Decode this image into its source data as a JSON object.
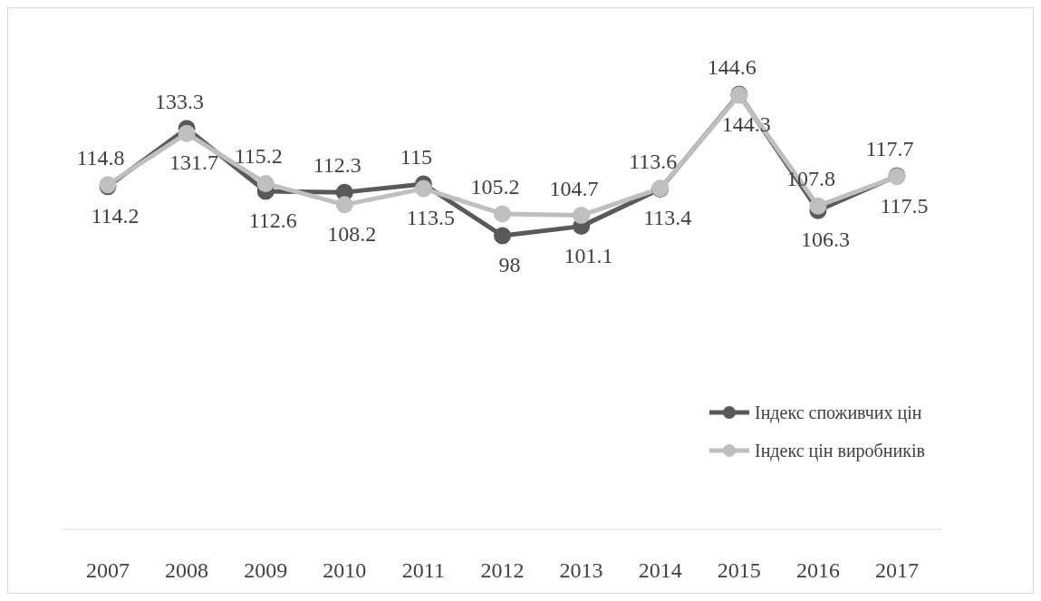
{
  "chart_data": {
    "type": "line",
    "categories": [
      "2007",
      "2008",
      "2009",
      "2010",
      "2011",
      "2012",
      "2013",
      "2014",
      "2015",
      "2016",
      "2017"
    ],
    "series": [
      {
        "name": "Індекс споживчих цін",
        "color": "#595959",
        "values": [
          114.2,
          133.3,
          112.6,
          112.3,
          115,
          98,
          101.1,
          113.4,
          144.6,
          106.3,
          117.7
        ]
      },
      {
        "name": "Індекс цін виробників",
        "color": "#bfbfbf",
        "values": [
          114.8,
          131.7,
          115.2,
          108.2,
          113.5,
          105.2,
          104.7,
          113.6,
          144.3,
          107.8,
          117.5
        ]
      }
    ],
    "data_labels": true,
    "legend": "right",
    "marker": "circle"
  }
}
